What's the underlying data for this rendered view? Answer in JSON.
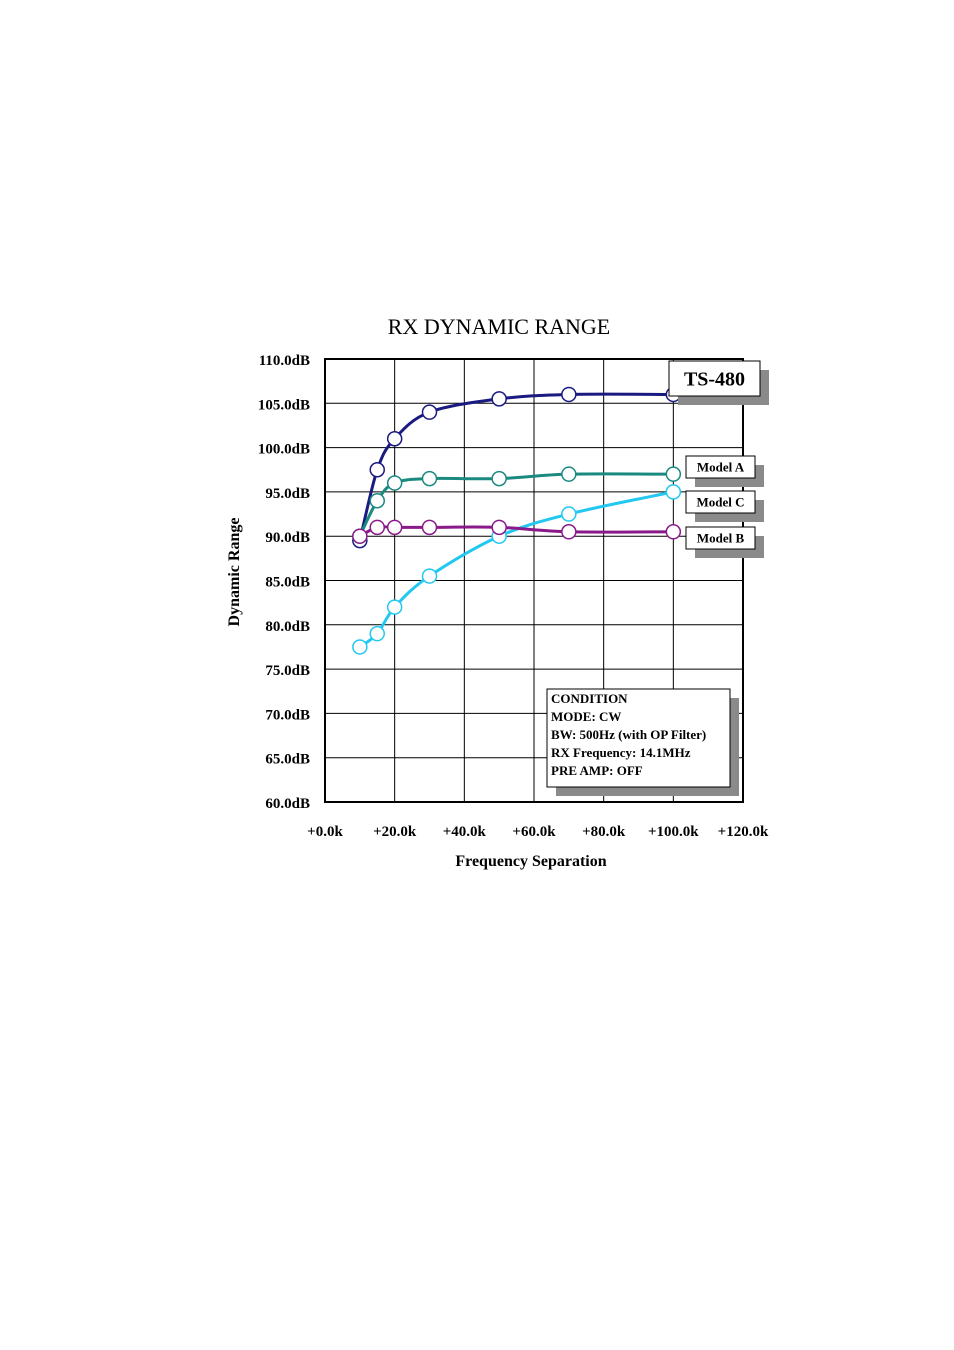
{
  "chart_data": {
    "type": "line",
    "title": "RX DYNAMIC RANGE",
    "xlabel": "Frequency Separation",
    "ylabel": "Dynamic Range",
    "xlim": [
      0,
      120
    ],
    "ylim": [
      60,
      110
    ],
    "x_ticks": [
      0,
      20,
      40,
      60,
      80,
      100,
      120
    ],
    "y_ticks": [
      60,
      65,
      70,
      75,
      80,
      85,
      90,
      95,
      100,
      105,
      110
    ],
    "x_tick_labels": [
      "+0.0k",
      "+20.0k",
      "+40.0k",
      "+60.0k",
      "+80.0k",
      "+100.0k",
      "+120.0k"
    ],
    "y_tick_labels": [
      "60.0dB",
      "65.0dB",
      "70.0dB",
      "75.0dB",
      "80.0dB",
      "85.0dB",
      "90.0dB",
      "95.0dB",
      "100.0dB",
      "105.0dB",
      "110.0dB"
    ],
    "grid": true,
    "series": [
      {
        "name": "TS-480",
        "color": "#1a1a80",
        "x": [
          10,
          15,
          20,
          30,
          50,
          70,
          100
        ],
        "y": [
          89.5,
          97.5,
          101,
          104,
          105.5,
          106,
          106
        ]
      },
      {
        "name": "Model A",
        "color": "#1a8a80",
        "x": [
          10,
          15,
          20,
          30,
          50,
          70,
          100
        ],
        "y": [
          90,
          94,
          96,
          96.5,
          96.5,
          97,
          97
        ]
      },
      {
        "name": "Model C",
        "color": "#22c8f0",
        "x": [
          10,
          15,
          20,
          30,
          50,
          70,
          100
        ],
        "y": [
          77.5,
          79,
          82,
          85.5,
          90,
          92.5,
          95
        ]
      },
      {
        "name": "Model B",
        "color": "#8a1a8a",
        "x": [
          10,
          15,
          20,
          30,
          50,
          70,
          100
        ],
        "y": [
          90,
          91,
          91,
          91,
          91,
          90.5,
          90.5
        ]
      }
    ],
    "condition_box": {
      "lines": [
        "CONDITION",
        "MODE: CW",
        "BW: 500Hz (with OP Filter)",
        "RX Frequency: 14.1MHz",
        "PRE AMP: OFF"
      ]
    }
  }
}
